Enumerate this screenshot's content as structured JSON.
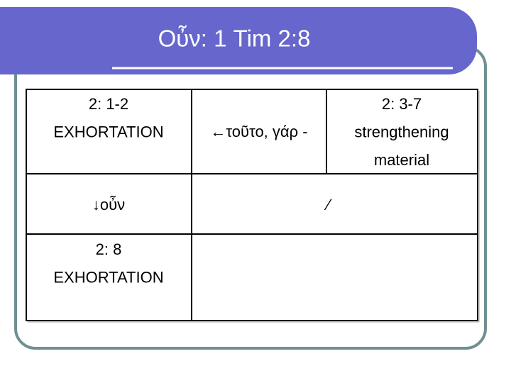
{
  "title": "Οὖν: 1 Tim 2:8",
  "table": {
    "rows": [
      [
        [
          "2: 1-2",
          "EXHORTATION"
        ],
        [
          "←τοῦτο, γάρ -"
        ],
        [
          "2: 3-7",
          "strengthening",
          "material"
        ]
      ],
      [
        [
          "↓οὖν"
        ],
        [
          "⁄"
        ]
      ],
      [
        [
          "2: 8",
          "EXHORTATION"
        ]
      ]
    ]
  }
}
